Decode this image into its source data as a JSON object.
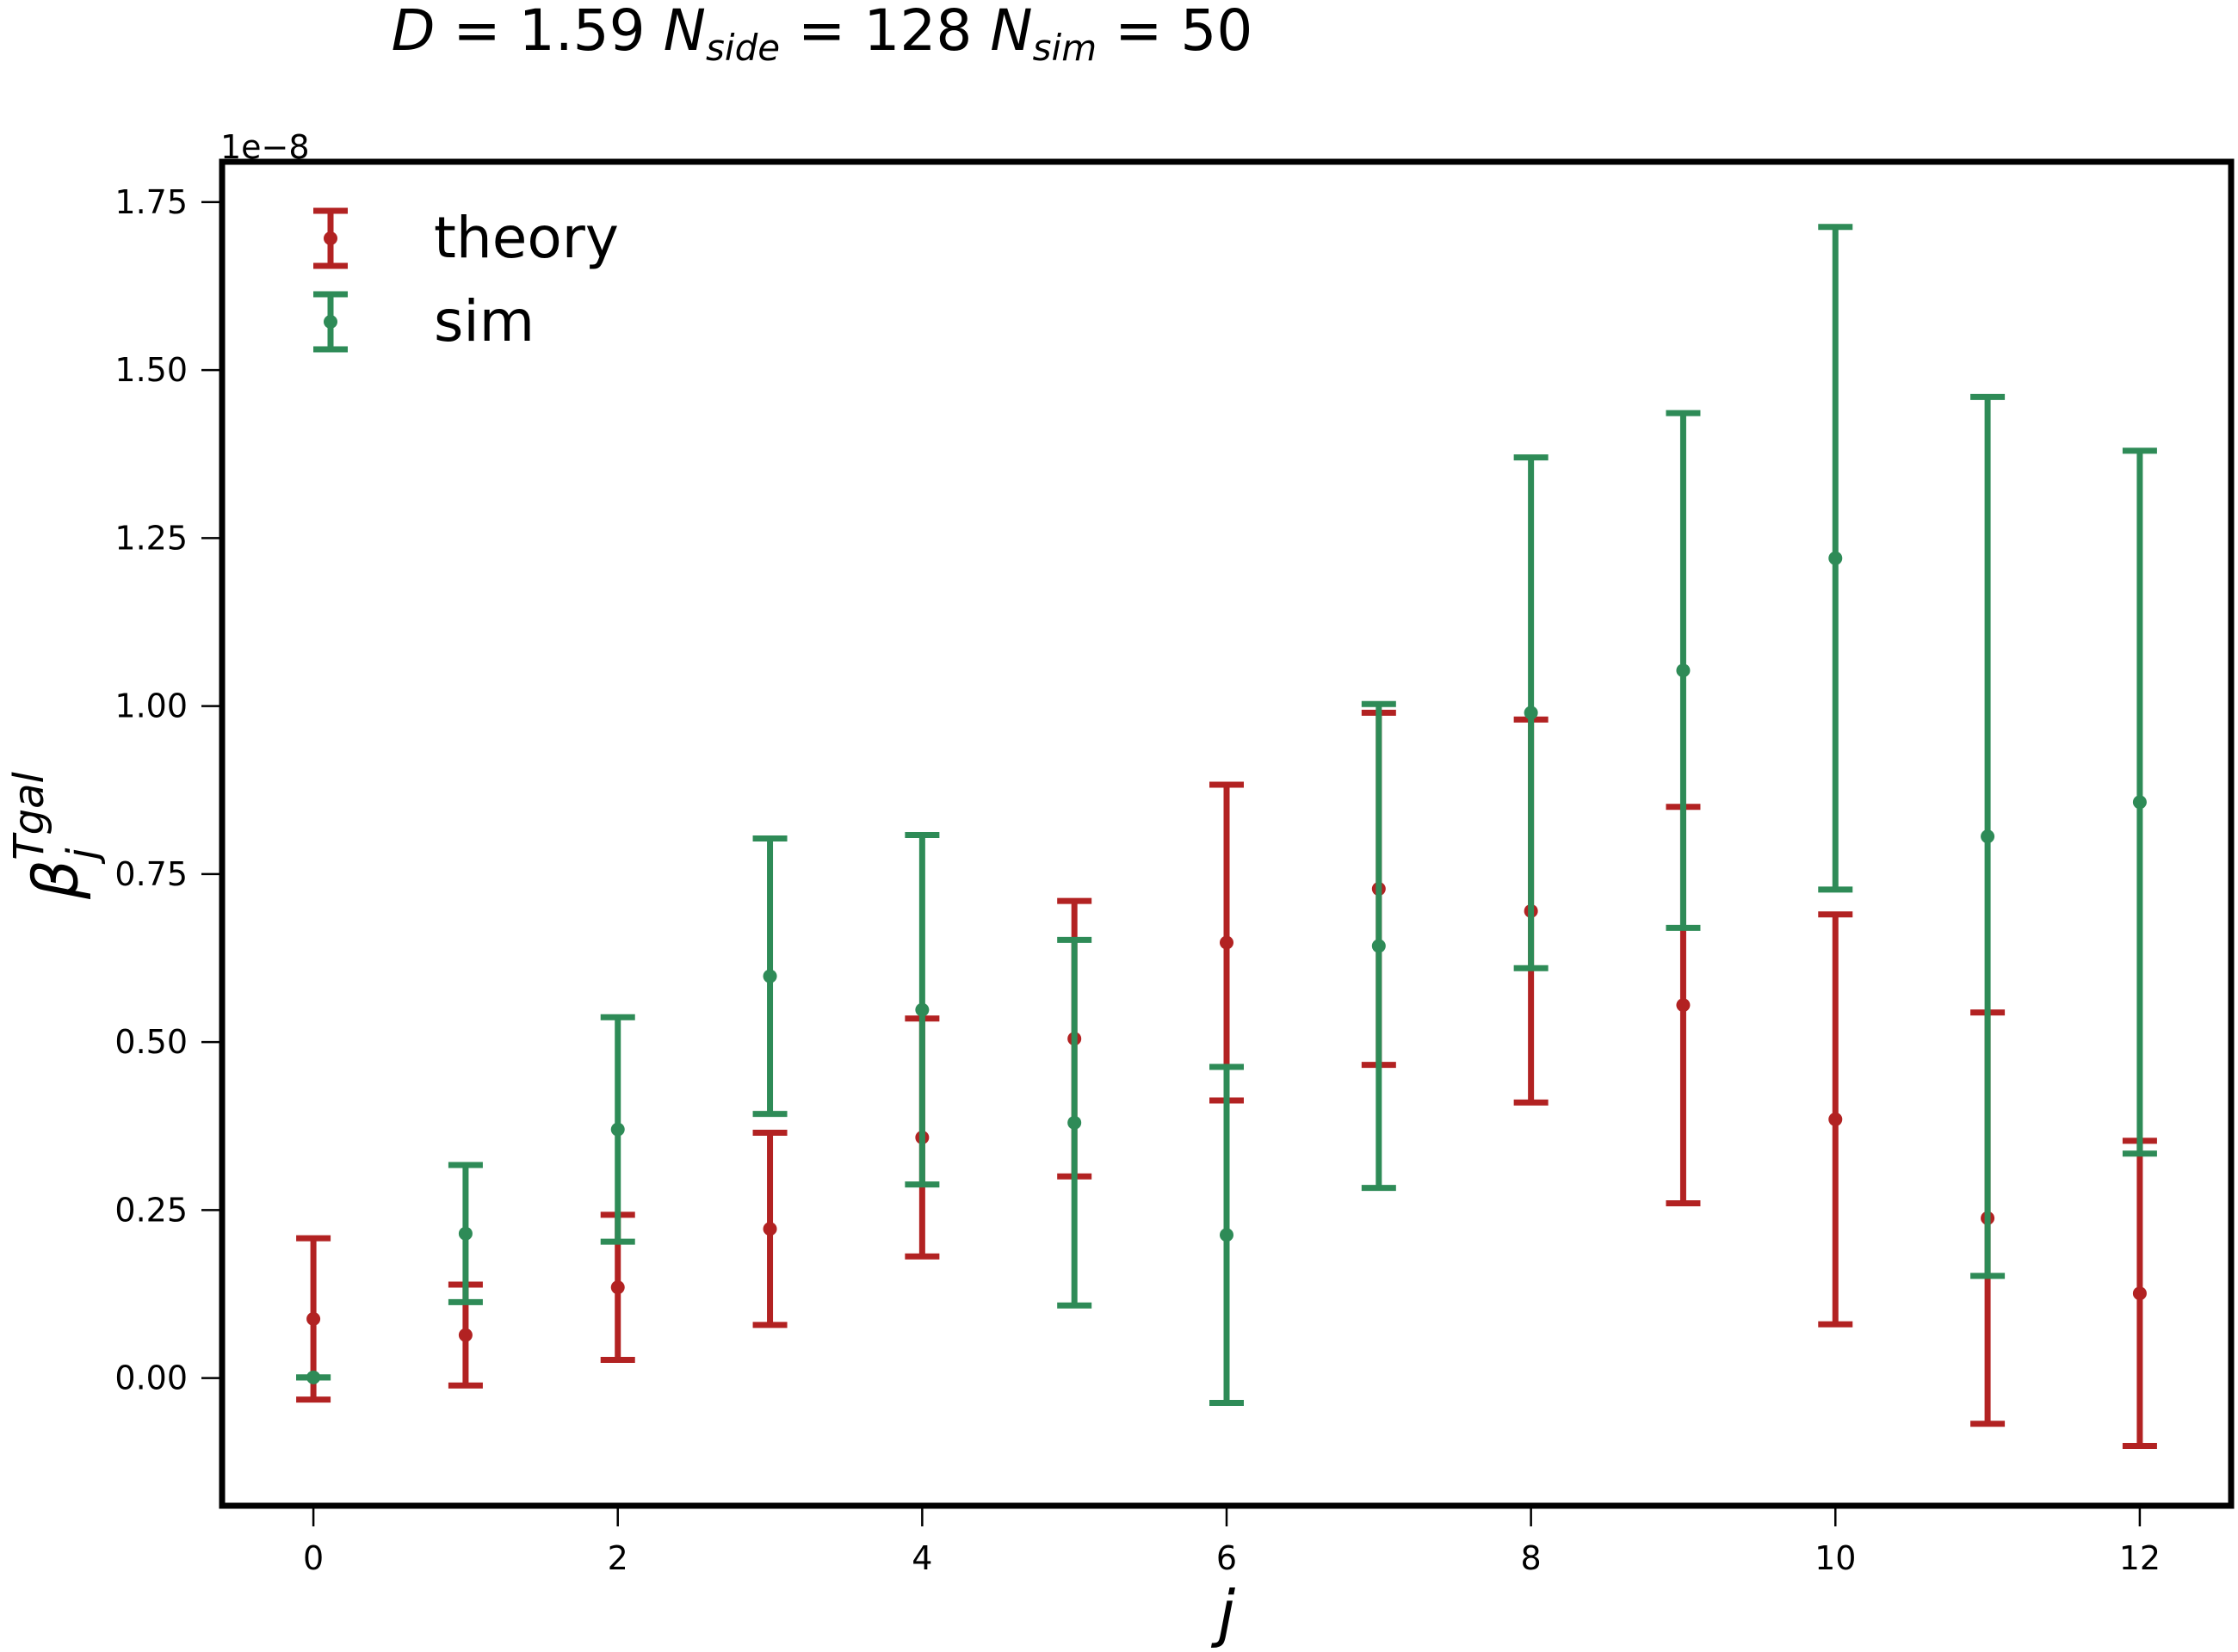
{
  "title": {
    "parts": [
      {
        "text": "D",
        "italic": true,
        "sub": false
      },
      {
        "text": " = 1.59 ",
        "italic": false,
        "sub": false
      },
      {
        "text": "N",
        "italic": true,
        "sub": false
      },
      {
        "text": "side",
        "italic": true,
        "sub": true
      },
      {
        "text": " = 128 ",
        "italic": false,
        "sub": false
      },
      {
        "text": "N",
        "italic": true,
        "sub": false
      },
      {
        "text": "sim",
        "italic": true,
        "sub": true
      },
      {
        "text": " = 50",
        "italic": false,
        "sub": false
      }
    ]
  },
  "chart_data": {
    "type": "scatter",
    "errorbars": true,
    "title": "D = 1.59 N_side = 128 N_sim = 50",
    "xlabel": "j",
    "ylabel": {
      "base": "β",
      "sub": "j",
      "sup": "Tgal"
    },
    "y_offset_label": "1e−8",
    "xlim": [
      -0.6,
      12.6
    ],
    "ylim": [
      -0.19,
      1.81
    ],
    "xticks": [
      0,
      2,
      4,
      6,
      8,
      10,
      12
    ],
    "yticks": [
      0.0,
      0.25,
      0.5,
      0.75,
      1.0,
      1.25,
      1.5,
      1.75
    ],
    "ytick_labels": [
      "0.00",
      "0.25",
      "0.50",
      "0.75",
      "1.00",
      "1.25",
      "1.50",
      "1.75"
    ],
    "grid": false,
    "legend": {
      "position": "top-left"
    },
    "series": [
      {
        "name": "theory",
        "color": "#b22222",
        "x": [
          0,
          1,
          2,
          3,
          4,
          5,
          6,
          7,
          8,
          9,
          10,
          11,
          12
        ],
        "y": [
          0.088,
          0.064,
          0.135,
          0.222,
          0.358,
          0.505,
          0.648,
          0.728,
          0.695,
          0.555,
          0.385,
          0.238,
          0.126
        ],
        "yerr": [
          0.12,
          0.075,
          0.108,
          0.143,
          0.177,
          0.205,
          0.235,
          0.262,
          0.285,
          0.295,
          0.305,
          0.306,
          0.227
        ]
      },
      {
        "name": "sim",
        "color": "#2e8b57",
        "x": [
          0,
          1,
          2,
          3,
          4,
          5,
          6,
          7,
          8,
          9,
          10,
          11,
          12
        ],
        "y": [
          0.001,
          0.215,
          0.37,
          0.598,
          0.548,
          0.38,
          0.213,
          0.643,
          0.99,
          1.053,
          1.22,
          0.806,
          0.857
        ],
        "yerr": [
          0.0,
          0.102,
          0.167,
          0.205,
          0.26,
          0.272,
          0.25,
          0.36,
          0.38,
          0.383,
          0.493,
          0.654,
          0.523
        ]
      }
    ]
  }
}
